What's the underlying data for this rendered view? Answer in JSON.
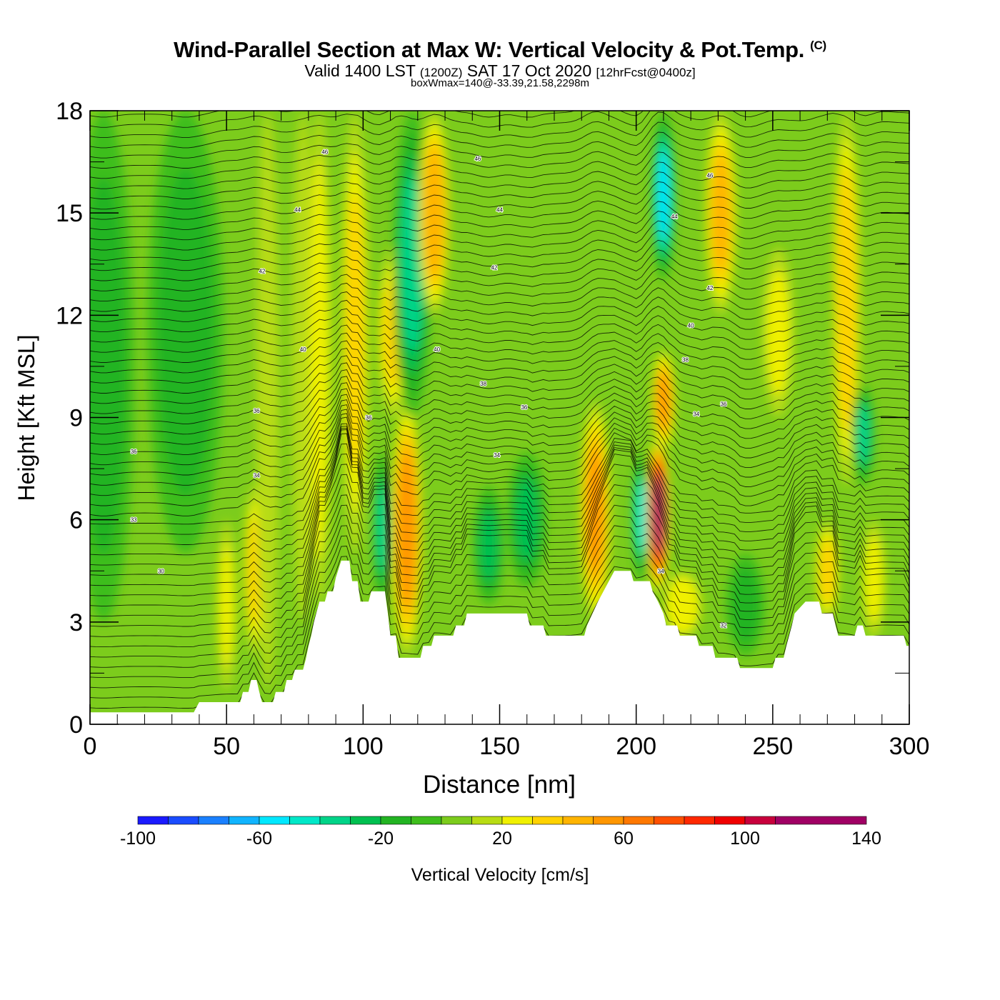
{
  "title": {
    "main": "Wind-Parallel Section at Max W: Vertical Velocity & Pot.Temp.",
    "copyright_mark": "(C)",
    "valid_prefix": "Valid 1400 LST",
    "valid_utc": "(1200Z)",
    "valid_date": "SAT 17 Oct 2020",
    "forecast": "[12hrFcst@0400z]",
    "boxwmax": "boxWmax=140@-33.39,21.58,2298m"
  },
  "chart_data": {
    "type": "heatmap",
    "title": "Wind-Parallel Section at Max W: Vertical Velocity & Pot.Temp.",
    "xlabel": "Distance [nm]",
    "ylabel": "Height [Kft MSL]",
    "xlim": [
      0,
      300
    ],
    "ylim": [
      0,
      18
    ],
    "x_ticks": [
      "0",
      "50",
      "100",
      "150",
      "200",
      "250",
      "300"
    ],
    "x_tick_values": [
      0,
      50,
      100,
      150,
      200,
      250,
      300
    ],
    "y_ticks": [
      "0",
      "3",
      "6",
      "9",
      "12",
      "15",
      "18"
    ],
    "y_tick_values": [
      0,
      3,
      6,
      9,
      12,
      15,
      18
    ],
    "background_w": 0,
    "colorbar": {
      "label": "Vertical Velocity [cm/s]",
      "levels": [
        -100,
        -90,
        -80,
        -70,
        -60,
        -50,
        -40,
        -30,
        -20,
        -10,
        0,
        10,
        20,
        30,
        40,
        50,
        60,
        70,
        80,
        90,
        100,
        110,
        120,
        130,
        140
      ],
      "colors": [
        "#1a1aff",
        "#1a4cff",
        "#1a80ff",
        "#10b4ff",
        "#00e8ff",
        "#00e8c8",
        "#00d488",
        "#00c050",
        "#22b422",
        "#3ebe1c",
        "#7ccc1c",
        "#b8dc12",
        "#f0f000",
        "#ffd200",
        "#ffb400",
        "#ff9600",
        "#ff7800",
        "#ff5000",
        "#ff2800",
        "#f00000",
        "#c8003c",
        "#a00064"
      ],
      "tick_labels": [
        "-100",
        "-60",
        "-20",
        "20",
        "60",
        "100",
        "140"
      ],
      "tick_values": [
        -100,
        -60,
        -20,
        20,
        60,
        100,
        140
      ]
    },
    "terrain": [
      [
        0,
        0.35
      ],
      [
        38,
        0.35
      ],
      [
        40,
        0.65
      ],
      [
        55,
        0.65
      ],
      [
        56,
        0.95
      ],
      [
        58,
        0.95
      ],
      [
        59,
        1.3
      ],
      [
        61,
        1.3
      ],
      [
        62,
        0.95
      ],
      [
        63,
        0.65
      ],
      [
        67,
        0.65
      ],
      [
        68,
        0.95
      ],
      [
        71,
        0.95
      ],
      [
        72,
        1.3
      ],
      [
        74,
        1.3
      ],
      [
        75,
        1.6
      ],
      [
        78,
        1.6
      ],
      [
        79,
        1.9
      ],
      [
        80,
        2.3
      ],
      [
        81,
        2.6
      ],
      [
        82,
        3.0
      ],
      [
        83,
        3.3
      ],
      [
        84,
        3.6
      ],
      [
        86,
        3.6
      ],
      [
        87,
        3.9
      ],
      [
        89,
        3.9
      ],
      [
        90,
        4.3
      ],
      [
        92,
        4.8
      ],
      [
        95,
        4.8
      ],
      [
        96,
        4.2
      ],
      [
        98,
        4.2
      ],
      [
        99,
        3.6
      ],
      [
        102,
        3.6
      ],
      [
        103,
        3.9
      ],
      [
        108,
        3.9
      ],
      [
        109,
        3.3
      ],
      [
        110,
        2.6
      ],
      [
        112,
        2.6
      ],
      [
        113,
        1.95
      ],
      [
        121,
        1.95
      ],
      [
        122,
        2.3
      ],
      [
        125,
        2.3
      ],
      [
        126,
        2.6
      ],
      [
        133,
        2.6
      ],
      [
        134,
        2.9
      ],
      [
        137,
        2.9
      ],
      [
        138,
        3.25
      ],
      [
        160,
        3.25
      ],
      [
        161,
        2.9
      ],
      [
        166,
        2.9
      ],
      [
        167,
        2.6
      ],
      [
        181,
        2.6
      ],
      [
        182,
        2.9
      ],
      [
        184,
        3.25
      ],
      [
        186,
        3.6
      ],
      [
        188,
        3.9
      ],
      [
        190,
        4.2
      ],
      [
        192,
        4.5
      ],
      [
        198,
        4.5
      ],
      [
        199,
        4.2
      ],
      [
        205,
        4.2
      ],
      [
        206,
        3.9
      ],
      [
        208,
        3.6
      ],
      [
        210,
        3.25
      ],
      [
        211,
        2.9
      ],
      [
        215,
        2.9
      ],
      [
        216,
        2.6
      ],
      [
        222,
        2.6
      ],
      [
        223,
        2.3
      ],
      [
        228,
        2.3
      ],
      [
        229,
        1.95
      ],
      [
        237,
        1.95
      ],
      [
        238,
        1.65
      ],
      [
        250,
        1.65
      ],
      [
        251,
        1.95
      ],
      [
        254,
        1.95
      ],
      [
        255,
        2.3
      ],
      [
        256,
        2.6
      ],
      [
        257,
        2.9
      ],
      [
        258,
        3.25
      ],
      [
        262,
        3.6
      ],
      [
        267,
        3.6
      ],
      [
        268,
        3.25
      ],
      [
        272,
        3.25
      ],
      [
        273,
        2.9
      ],
      [
        274,
        2.6
      ],
      [
        280,
        2.6
      ],
      [
        281,
        2.9
      ],
      [
        283,
        2.9
      ],
      [
        284,
        2.6
      ],
      [
        298,
        2.6
      ],
      [
        299,
        2.3
      ],
      [
        300,
        2.3
      ]
    ],
    "updraft_columns": [
      {
        "x": 50,
        "w_cm_s": 20,
        "width_nm": 2.5,
        "ybot": 1,
        "ytop": 6
      },
      {
        "x": 60,
        "w_cm_s": 30,
        "width_nm": 2.5,
        "ybot": 2,
        "ytop": 7
      },
      {
        "x": 65,
        "w_cm_s": 15,
        "width_nm": 3,
        "ybot": 1,
        "ytop": 18
      },
      {
        "x": 78,
        "w_cm_s": 15,
        "width_nm": 3,
        "ybot": 3,
        "ytop": 18
      },
      {
        "x": 84,
        "w_cm_s": 25,
        "width_nm": 3,
        "ybot": 3.5,
        "ytop": 18
      },
      {
        "x": 97,
        "w_cm_s": 30,
        "width_nm": 3.5,
        "ybot": 5,
        "ytop": 18
      },
      {
        "x": 107,
        "w_cm_s": -40,
        "width_nm": 2.5,
        "ybot": 3.5,
        "ytop": 8
      },
      {
        "x": 116,
        "w_cm_s": 55,
        "width_nm": 4,
        "ybot": 2,
        "ytop": 9.5
      },
      {
        "x": 111,
        "w_cm_s": 30,
        "width_nm": 4,
        "ybot": 9,
        "ytop": 14
      },
      {
        "x": 118,
        "w_cm_s": -40,
        "width_nm": 5,
        "ybot": 9,
        "ytop": 18
      },
      {
        "x": 126,
        "w_cm_s": 45,
        "width_nm": 4,
        "ybot": 12,
        "ytop": 18
      },
      {
        "x": 146,
        "w_cm_s": -25,
        "width_nm": 4,
        "ybot": 3.5,
        "ytop": 7
      },
      {
        "x": 160,
        "w_cm_s": -25,
        "width_nm": 5,
        "ybot": 4,
        "ytop": 8
      },
      {
        "x": 185,
        "w_cm_s": 50,
        "width_nm": 4,
        "ybot": 3,
        "ytop": 9.5
      },
      {
        "x": 202,
        "w_cm_s": -50,
        "width_nm": 2.5,
        "ybot": 4.2,
        "ytop": 8
      },
      {
        "x": 208,
        "w_cm_s": 115,
        "width_nm": 3,
        "ybot": 3.8,
        "ytop": 8.5
      },
      {
        "x": 210,
        "w_cm_s": 50,
        "width_nm": 3,
        "ybot": 8,
        "ytop": 11
      },
      {
        "x": 210,
        "w_cm_s": -55,
        "width_nm": 3,
        "ybot": 13,
        "ytop": 18
      },
      {
        "x": 231,
        "w_cm_s": 40,
        "width_nm": 4,
        "ybot": 12,
        "ytop": 18
      },
      {
        "x": 217,
        "w_cm_s": 25,
        "width_nm": 5,
        "ybot": 2.5,
        "ytop": 4.5
      },
      {
        "x": 240,
        "w_cm_s": -20,
        "width_nm": 5,
        "ybot": 2,
        "ytop": 5
      },
      {
        "x": 252,
        "w_cm_s": 20,
        "width_nm": 4,
        "ybot": 9,
        "ytop": 14
      },
      {
        "x": 270,
        "w_cm_s": 30,
        "width_nm": 3,
        "ybot": 3,
        "ytop": 6
      },
      {
        "x": 277,
        "w_cm_s": 35,
        "width_nm": 3.5,
        "ybot": 7,
        "ytop": 18
      },
      {
        "x": 283,
        "w_cm_s": -40,
        "width_nm": 3,
        "ybot": 7,
        "ytop": 10
      },
      {
        "x": 287,
        "w_cm_s": 20,
        "width_nm": 3,
        "ybot": 2.5,
        "ytop": 6
      },
      {
        "x": 5,
        "w_cm_s": -15,
        "width_nm": 8,
        "ybot": 3,
        "ytop": 18
      },
      {
        "x": 35,
        "w_cm_s": -15,
        "width_nm": 10,
        "ybot": 5,
        "ytop": 18
      }
    ],
    "theta_contour_labels": [
      {
        "x": 16,
        "y": 8.0,
        "text": "36"
      },
      {
        "x": 16,
        "y": 6.0,
        "text": "33"
      },
      {
        "x": 26,
        "y": 4.5,
        "text": "30"
      },
      {
        "x": 61,
        "y": 9.2,
        "text": "36"
      },
      {
        "x": 61,
        "y": 7.3,
        "text": "34"
      },
      {
        "x": 63,
        "y": 13.3,
        "text": "42"
      },
      {
        "x": 76,
        "y": 15.1,
        "text": "44"
      },
      {
        "x": 78,
        "y": 11.0,
        "text": "40"
      },
      {
        "x": 86,
        "y": 16.8,
        "text": "46"
      },
      {
        "x": 102,
        "y": 9.0,
        "text": "36"
      },
      {
        "x": 127,
        "y": 11.0,
        "text": "40"
      },
      {
        "x": 142,
        "y": 16.6,
        "text": "46"
      },
      {
        "x": 144,
        "y": 10.0,
        "text": "38"
      },
      {
        "x": 148,
        "y": 13.4,
        "text": "42"
      },
      {
        "x": 150,
        "y": 15.1,
        "text": "44"
      },
      {
        "x": 149,
        "y": 7.9,
        "text": "34"
      },
      {
        "x": 159,
        "y": 9.3,
        "text": "36"
      },
      {
        "x": 214,
        "y": 14.9,
        "text": "44"
      },
      {
        "x": 209,
        "y": 4.5,
        "text": "34"
      },
      {
        "x": 218,
        "y": 10.7,
        "text": "38"
      },
      {
        "x": 220,
        "y": 11.7,
        "text": "40"
      },
      {
        "x": 222,
        "y": 9.1,
        "text": "34"
      },
      {
        "x": 227,
        "y": 12.8,
        "text": "42"
      },
      {
        "x": 227,
        "y": 16.1,
        "text": "46"
      },
      {
        "x": 232,
        "y": 9.4,
        "text": "36"
      },
      {
        "x": 232,
        "y": 2.9,
        "text": "32"
      }
    ]
  }
}
